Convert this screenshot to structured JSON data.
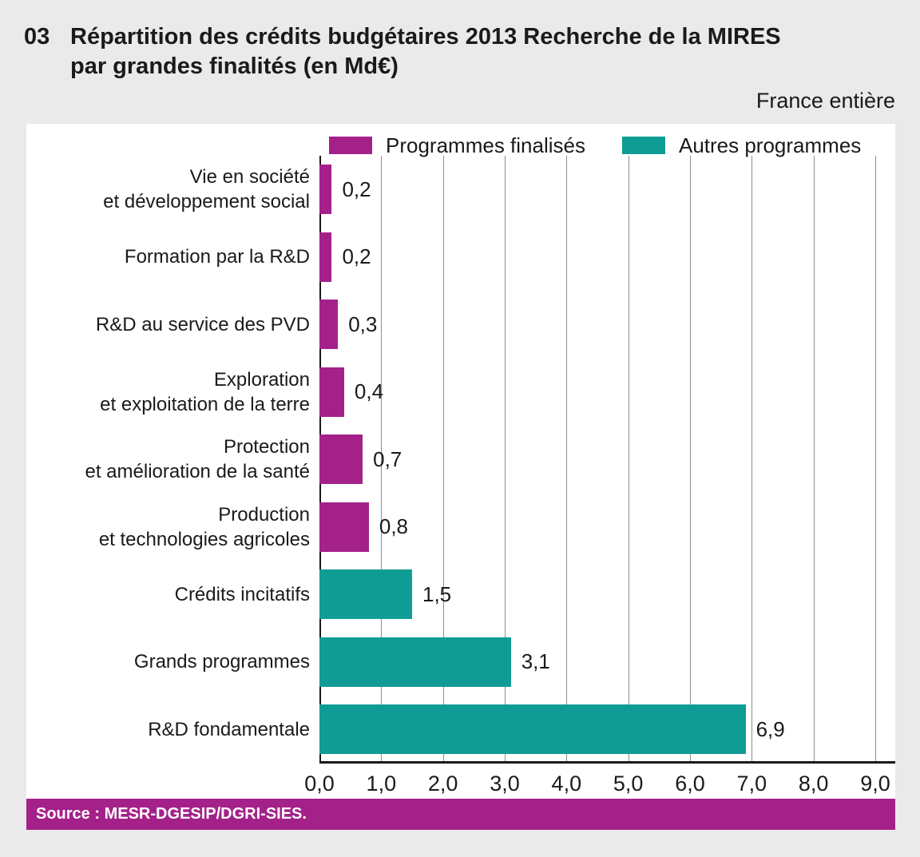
{
  "page_background": "#EAEAEA",
  "header": {
    "figure_number": "03",
    "title_line1": "Répartition des crédits budgétaires 2013 Recherche de la MIRES",
    "title_line2": "par grandes finalités (en Md€)",
    "region_note": "France entière"
  },
  "legend": {
    "items": [
      {
        "label": "Programmes finalisés",
        "color": "#A42189"
      },
      {
        "label": "Autres programmes",
        "color": "#0F9C95"
      }
    ]
  },
  "chart_data": {
    "type": "bar",
    "orientation": "horizontal",
    "title": "Répartition des crédits budgétaires 2013 Recherche de la MIRES par grandes finalités (en Md€)",
    "unit": "Md€",
    "xlim": [
      0,
      9
    ],
    "x_ticks": [
      "0,0",
      "1,0",
      "2,0",
      "3,0",
      "4,0",
      "5,0",
      "6,0",
      "7,0",
      "8,0",
      "9,0"
    ],
    "grid": true,
    "legend_position": "top",
    "bars": [
      {
        "label_lines": [
          "Vie en société",
          "et développement social"
        ],
        "value": 0.2,
        "value_label": "0,2",
        "series": "Programmes finalisés"
      },
      {
        "label_lines": [
          "Formation par la R&D"
        ],
        "value": 0.2,
        "value_label": "0,2",
        "series": "Programmes finalisés"
      },
      {
        "label_lines": [
          "R&D au service des PVD"
        ],
        "value": 0.3,
        "value_label": "0,3",
        "series": "Programmes finalisés"
      },
      {
        "label_lines": [
          "Exploration",
          "et exploitation de la terre"
        ],
        "value": 0.4,
        "value_label": "0,4",
        "series": "Programmes finalisés"
      },
      {
        "label_lines": [
          "Protection",
          "et amélioration de la santé"
        ],
        "value": 0.7,
        "value_label": "0,7",
        "series": "Programmes finalisés"
      },
      {
        "label_lines": [
          "Production",
          "et technologies agricoles"
        ],
        "value": 0.8,
        "value_label": "0,8",
        "series": "Programmes finalisés"
      },
      {
        "label_lines": [
          "Crédits incitatifs"
        ],
        "value": 1.5,
        "value_label": "1,5",
        "series": "Autres programmes"
      },
      {
        "label_lines": [
          "Grands programmes"
        ],
        "value": 3.1,
        "value_label": "3,1",
        "series": "Autres programmes"
      },
      {
        "label_lines": [
          "R&D fondamentale"
        ],
        "value": 6.9,
        "value_label": "6,9",
        "series": "Autres programmes"
      }
    ]
  },
  "source": {
    "text": "Source : MESR-DGESIP/DGRI-SIES."
  },
  "colors": {
    "magenta": "#A42189",
    "teal": "#0F9C95",
    "grid": "#8F8F8F",
    "axis": "#1A1A1A",
    "source_bar": "#A42189"
  }
}
